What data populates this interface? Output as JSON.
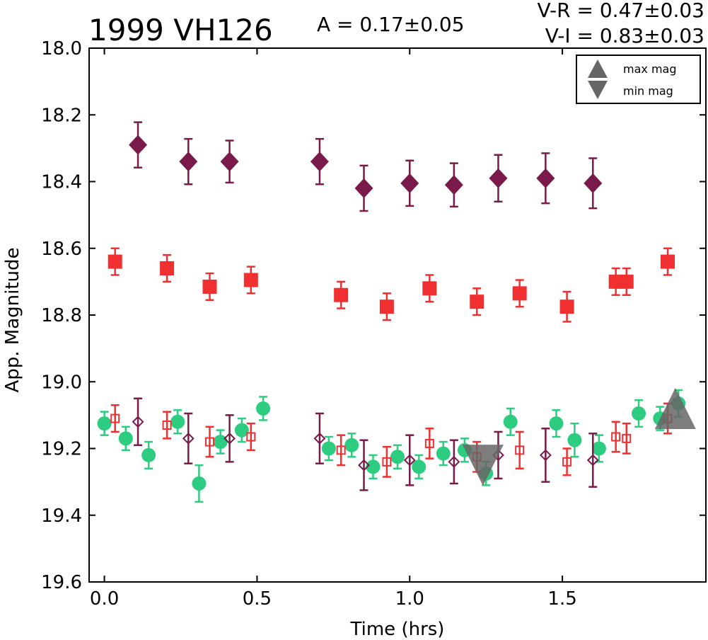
{
  "chart_data": {
    "type": "scatter",
    "title": "1999 VH126",
    "amplitude_label": "A  = 0.17±0.05",
    "color_labels": [
      "V-R = 0.47±0.03",
      "V-I  = 0.83±0.03"
    ],
    "xlabel": "Time (hrs)",
    "ylabel": "App. Magnitude",
    "xlim": [
      -0.05,
      1.97
    ],
    "ylim": [
      19.6,
      18.0
    ],
    "y_inverted": true,
    "x_ticks": [
      0.0,
      0.5,
      1.0,
      1.5
    ],
    "x_tick_labels": [
      "0.0",
      "0.5",
      "1.0",
      "1.5"
    ],
    "y_ticks": [
      18.0,
      18.2,
      18.4,
      18.6,
      18.8,
      19.0,
      19.2,
      19.4,
      19.6
    ],
    "y_tick_labels": [
      "18.0",
      "18.2",
      "18.4",
      "18.6",
      "18.8",
      "19.0",
      "19.2",
      "19.4",
      "19.6"
    ],
    "grid": false,
    "legend": {
      "placement": "top-right",
      "entries": [
        {
          "label": "max mag",
          "marker": "triangle-up"
        },
        {
          "label": "min mag",
          "marker": "triangle-down"
        }
      ]
    },
    "colors": {
      "v": "#2ecc80",
      "r": "#f03030",
      "i": "#7a1a4a",
      "extrema": "#666666"
    },
    "series": [
      {
        "marker": "circle",
        "color_key": "v",
        "x": [
          0.0,
          0.07,
          0.145,
          0.24,
          0.31,
          0.38,
          0.45,
          0.52,
          0.735,
          0.81,
          0.88,
          0.96,
          1.03,
          1.11,
          1.18,
          1.25,
          1.33,
          1.48,
          1.54,
          1.62,
          1.75,
          1.82,
          1.88
        ],
        "y": [
          19.125,
          19.17,
          19.22,
          19.12,
          19.305,
          19.18,
          19.145,
          19.08,
          19.2,
          19.19,
          19.255,
          19.225,
          19.255,
          19.215,
          19.205,
          19.275,
          19.12,
          19.125,
          19.175,
          19.2,
          19.095,
          19.11,
          19.065
        ],
        "err": [
          0.035,
          0.035,
          0.04,
          0.035,
          0.055,
          0.035,
          0.035,
          0.035,
          0.035,
          0.035,
          0.035,
          0.035,
          0.035,
          0.035,
          0.035,
          0.035,
          0.04,
          0.04,
          0.05,
          0.04,
          0.04,
          0.035,
          0.04
        ]
      },
      {
        "marker": "square-open",
        "color_key": "r",
        "x": [
          0.035,
          0.205,
          0.345,
          0.48,
          0.775,
          0.925,
          1.065,
          1.22,
          1.36,
          1.515,
          1.675,
          1.71,
          1.845
        ],
        "y": [
          19.11,
          19.13,
          19.18,
          19.165,
          19.205,
          19.24,
          19.185,
          19.225,
          19.205,
          19.24,
          19.165,
          19.17,
          19.11
        ],
        "err": [
          0.04,
          0.04,
          0.045,
          0.04,
          0.045,
          0.045,
          0.045,
          0.045,
          0.055,
          0.04,
          0.045,
          0.045,
          0.045
        ]
      },
      {
        "marker": "diamond-open",
        "color_key": "i",
        "x": [
          0.11,
          0.275,
          0.41,
          0.705,
          0.85,
          1.0,
          1.145,
          1.29,
          1.445,
          1.6
        ],
        "y": [
          19.12,
          19.17,
          19.17,
          19.17,
          19.25,
          19.235,
          19.24,
          19.22,
          19.22,
          19.235
        ],
        "err": [
          0.07,
          0.075,
          0.07,
          0.075,
          0.075,
          0.075,
          0.065,
          0.07,
          0.08,
          0.08
        ]
      },
      {
        "marker": "square",
        "color_key": "r",
        "x": [
          0.035,
          0.205,
          0.345,
          0.48,
          0.775,
          0.925,
          1.065,
          1.22,
          1.36,
          1.515,
          1.675,
          1.71,
          1.845
        ],
        "y": [
          18.64,
          18.66,
          18.715,
          18.695,
          18.74,
          18.775,
          18.72,
          18.76,
          18.735,
          18.775,
          18.7,
          18.7,
          18.64
        ],
        "err": [
          0.04,
          0.04,
          0.04,
          0.04,
          0.04,
          0.04,
          0.04,
          0.04,
          0.04,
          0.045,
          0.04,
          0.04,
          0.04
        ]
      },
      {
        "marker": "diamond",
        "color_key": "i",
        "x": [
          0.11,
          0.275,
          0.41,
          0.705,
          0.85,
          1.0,
          1.145,
          1.29,
          1.445,
          1.6
        ],
        "y": [
          18.29,
          18.34,
          18.34,
          18.34,
          18.42,
          18.405,
          18.41,
          18.39,
          18.39,
          18.405
        ],
        "err": [
          0.068,
          0.068,
          0.063,
          0.068,
          0.068,
          0.068,
          0.065,
          0.07,
          0.075,
          0.075
        ]
      }
    ],
    "extrema": [
      {
        "label": "min mag",
        "marker": "triangle-down",
        "x": 1.24,
        "y": 19.25
      },
      {
        "label": "max mag",
        "marker": "triangle-up",
        "x": 1.87,
        "y": 19.08
      }
    ]
  }
}
